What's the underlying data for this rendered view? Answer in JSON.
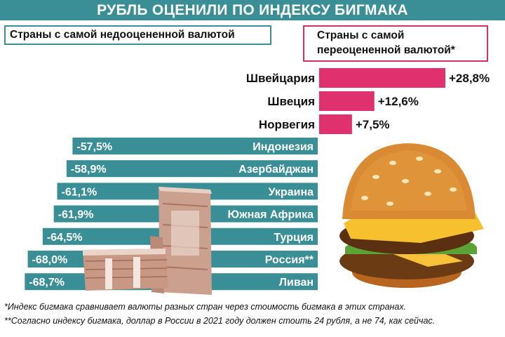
{
  "title": "РУБЛЬ ОЦЕНИЛИ ПО ИНДЕКСУ БИГМАКА",
  "undervalued_header": "Страны с самой недооцененной валютой",
  "overvalued_header_line1": "Страны с самой",
  "overvalued_header_line2": "переоцененной валютой*",
  "footnote1": "*Индекс бигмака сравнивает валюты разных стран через стоимость бигмака в этих странах.",
  "footnote2": "**Согласно индексу бигмака, доллар в России в 2021 году должен стоить 24 рубля, а не 74, как сейчас.",
  "colors": {
    "undervalued": "#3a8f96",
    "overvalued": "#e0306e",
    "title_bg": "#3a8f96"
  },
  "illustrations": [
    "ruble-banknotes-stack",
    "burger-icon"
  ],
  "chart_data": {
    "type": "bar",
    "unit": "%",
    "overvalued": {
      "categories": [
        "Швейцария",
        "Швеция",
        "Норвегия"
      ],
      "values": [
        28.8,
        12.6,
        7.5
      ],
      "labels": [
        "+28,8%",
        "+12,6%",
        "+7,5%"
      ]
    },
    "undervalued": {
      "categories": [
        "Индонезия",
        "Азербайджан",
        "Украина",
        "Южная Африка",
        "Турция",
        "Россия**",
        "Ливан"
      ],
      "values": [
        -57.5,
        -58.9,
        -61.1,
        -61.9,
        -64.5,
        -68.0,
        -68.7
      ],
      "labels": [
        "-57,5%",
        "-58,9%",
        "-61,1%",
        "-61,9%",
        "-64,5%",
        "-68,0%",
        "-68,7%"
      ]
    }
  }
}
